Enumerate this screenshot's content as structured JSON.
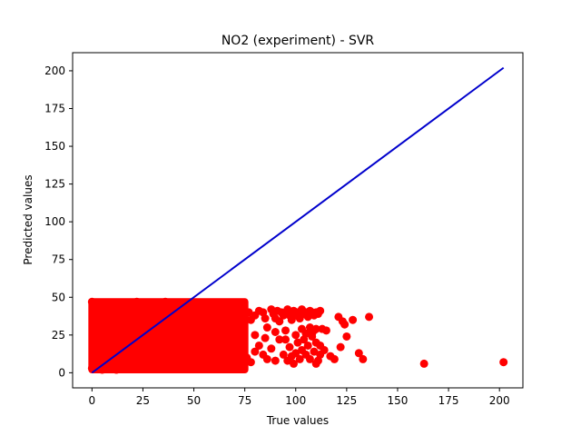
{
  "chart_data": {
    "type": "scatter",
    "title": "NO2 (experiment) - SVR",
    "xlabel": "True values",
    "ylabel": "Predicted values",
    "xlim": [
      -9.5,
      211.5
    ],
    "ylim": [
      -10,
      212
    ],
    "xticks": [
      "0",
      "25",
      "50",
      "75",
      "100",
      "125",
      "150",
      "175",
      "200"
    ],
    "yticks": [
      "0",
      "25",
      "50",
      "75",
      "100",
      "125",
      "150",
      "175",
      "200"
    ],
    "grid": false,
    "point_color": "#ff0000",
    "line_color": "#0000cc",
    "reference_line": {
      "from": [
        0,
        0
      ],
      "to": [
        202,
        202
      ]
    },
    "dense_cloud": {
      "x_range": [
        0,
        75
      ],
      "y_range": [
        2,
        47
      ]
    },
    "points": [
      [
        0,
        47
      ],
      [
        3,
        46
      ],
      [
        8,
        45
      ],
      [
        15,
        46
      ],
      [
        22,
        47
      ],
      [
        30,
        46
      ],
      [
        36,
        47
      ],
      [
        42,
        45
      ],
      [
        48,
        46
      ],
      [
        55,
        45
      ],
      [
        62,
        45
      ],
      [
        68,
        44
      ],
      [
        73,
        43
      ],
      [
        0,
        3
      ],
      [
        5,
        2
      ],
      [
        12,
        2
      ],
      [
        20,
        3
      ],
      [
        30,
        4
      ],
      [
        40,
        4
      ],
      [
        50,
        5
      ],
      [
        60,
        5
      ],
      [
        70,
        6
      ],
      [
        74,
        3
      ],
      [
        72,
        40
      ],
      [
        75,
        38
      ],
      [
        77,
        40
      ],
      [
        78,
        35
      ],
      [
        80,
        38
      ],
      [
        82,
        41
      ],
      [
        84,
        40
      ],
      [
        85,
        36
      ],
      [
        86,
        30
      ],
      [
        88,
        42
      ],
      [
        89,
        39
      ],
      [
        90,
        36
      ],
      [
        91,
        41
      ],
      [
        92,
        34
      ],
      [
        93,
        40
      ],
      [
        94,
        38
      ],
      [
        95,
        28
      ],
      [
        96,
        42
      ],
      [
        97,
        38
      ],
      [
        98,
        35
      ],
      [
        99,
        41
      ],
      [
        100,
        38
      ],
      [
        101,
        40
      ],
      [
        102,
        36
      ],
      [
        103,
        42
      ],
      [
        104,
        39
      ],
      [
        105,
        40
      ],
      [
        106,
        37
      ],
      [
        107,
        41
      ],
      [
        108,
        40
      ],
      [
        109,
        38
      ],
      [
        110,
        40
      ],
      [
        111,
        39
      ],
      [
        112,
        41
      ],
      [
        76,
        10
      ],
      [
        78,
        7
      ],
      [
        80,
        14
      ],
      [
        82,
        18
      ],
      [
        84,
        12
      ],
      [
        86,
        9
      ],
      [
        88,
        16
      ],
      [
        90,
        8
      ],
      [
        92,
        22
      ],
      [
        94,
        12
      ],
      [
        96,
        8
      ],
      [
        97,
        17
      ],
      [
        98,
        11
      ],
      [
        99,
        6
      ],
      [
        100,
        13
      ],
      [
        101,
        20
      ],
      [
        102,
        9
      ],
      [
        103,
        15
      ],
      [
        104,
        22
      ],
      [
        105,
        12
      ],
      [
        106,
        18
      ],
      [
        107,
        9
      ],
      [
        108,
        26
      ],
      [
        109,
        14
      ],
      [
        110,
        20
      ],
      [
        111,
        8
      ],
      [
        112,
        12
      ],
      [
        80,
        25
      ],
      [
        85,
        23
      ],
      [
        90,
        27
      ],
      [
        95,
        22
      ],
      [
        100,
        25
      ],
      [
        103,
        29
      ],
      [
        105,
        26
      ],
      [
        107,
        30
      ],
      [
        109,
        28
      ],
      [
        110,
        29
      ],
      [
        108,
        24
      ],
      [
        110,
        6
      ],
      [
        112,
        18
      ],
      [
        113,
        29
      ],
      [
        114,
        15
      ],
      [
        115,
        28
      ],
      [
        117,
        11
      ],
      [
        119,
        9
      ],
      [
        121,
        37
      ],
      [
        122,
        17
      ],
      [
        123,
        34
      ],
      [
        124,
        32
      ],
      [
        125,
        24
      ],
      [
        128,
        35
      ],
      [
        131,
        13
      ],
      [
        133,
        9
      ],
      [
        136,
        37
      ],
      [
        163,
        6
      ],
      [
        202,
        7
      ]
    ]
  }
}
